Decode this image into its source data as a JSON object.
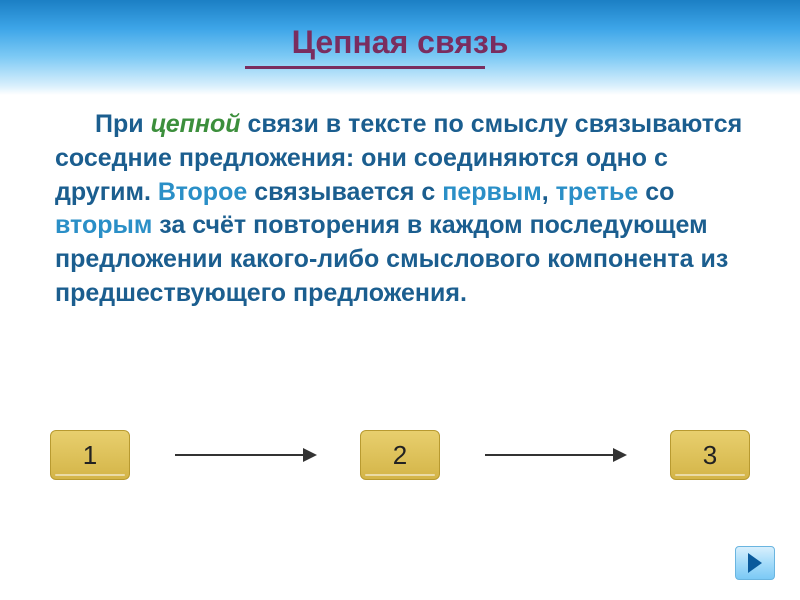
{
  "title": {
    "text": "Цепная связь",
    "color": "#7a2d5f",
    "fontsize": 32
  },
  "body": {
    "segments": [
      {
        "text": "При ",
        "class": "indent-start"
      },
      {
        "text": "цепной",
        "class": "accent-green"
      },
      {
        "text": " связи в тексте по смыслу связываются соседние предложения: они соединяются одно с другим. "
      },
      {
        "text": "Второе",
        "class": "accent-blue"
      },
      {
        "text": " связывается с "
      },
      {
        "text": "первым",
        "class": "accent-blue"
      },
      {
        "text": ", "
      },
      {
        "text": "третье",
        "class": "accent-blue"
      },
      {
        "text": " со "
      },
      {
        "text": "вторым",
        "class": "accent-blue"
      },
      {
        "text": " за счёт повторения в каждом последующем предложении какого-либо смыслового компонента из предшествующего предложения."
      }
    ],
    "base_color": "#1b5e8f",
    "accent_green": "#3c8f3c",
    "accent_blue": "#2a8fc7",
    "fontsize": 25
  },
  "diagram": {
    "type": "flowchart",
    "boxes": [
      "1",
      "2",
      "3"
    ],
    "box_fill": "#e0c458",
    "box_border": "#b89a30",
    "arrow_color": "#333333"
  },
  "nav": {
    "next_icon": "triangle-right"
  },
  "background": {
    "gradient": [
      "#1b7fc4",
      "#3da5e8",
      "#7ecaf5",
      "#d8effc",
      "#ffffff"
    ]
  }
}
